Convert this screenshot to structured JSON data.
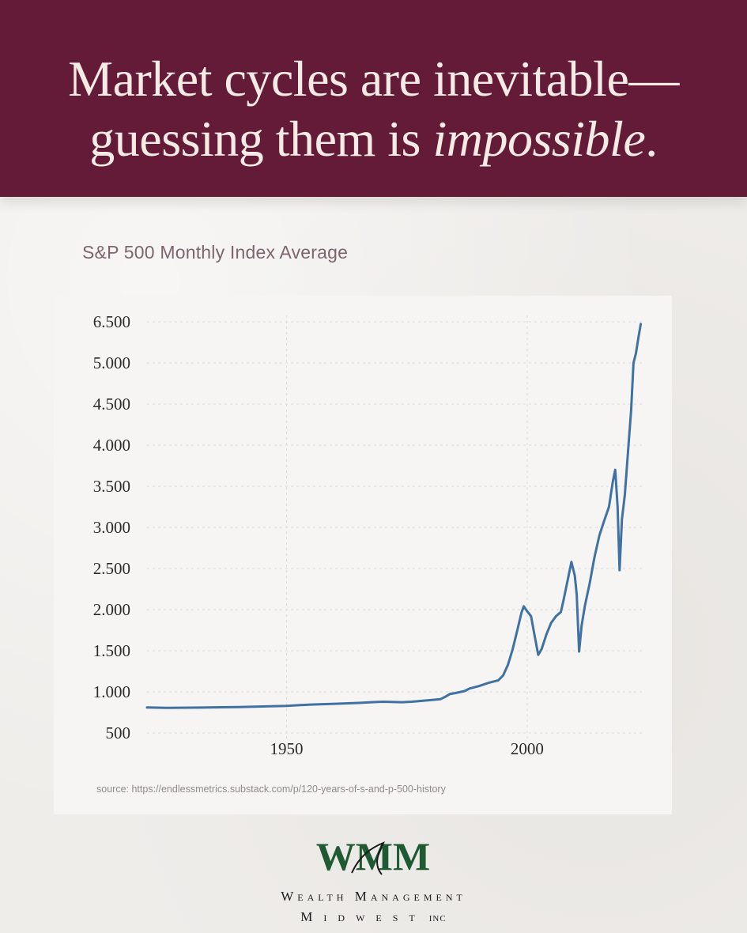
{
  "header": {
    "line1": "Market cycles are inevitable—",
    "line2_prefix": "guessing them is ",
    "line2_emphasis": "impossible",
    "line2_suffix": "."
  },
  "chart_data": {
    "type": "line",
    "title": "S&P 500 Monthly Index Average",
    "xlabel": "",
    "ylabel": "",
    "x_ticks": [
      "1950",
      "2000"
    ],
    "y_ticks": [
      "500",
      "1.000",
      "1.500",
      "2.000",
      "2.500",
      "3.000",
      "3.500",
      "4.000",
      "4.500",
      "5.000",
      "6.500"
    ],
    "xlim": [
      1921,
      2024
    ],
    "grid": true,
    "line_color": "#3f72a3",
    "series": [
      {
        "values": [
          [
            1921,
            810
          ],
          [
            1925,
            805
          ],
          [
            1930,
            808
          ],
          [
            1935,
            812
          ],
          [
            1940,
            815
          ],
          [
            1945,
            822
          ],
          [
            1950,
            830
          ],
          [
            1955,
            845
          ],
          [
            1960,
            855
          ],
          [
            1965,
            865
          ],
          [
            1968,
            875
          ],
          [
            1970,
            880
          ],
          [
            1974,
            874
          ],
          [
            1976,
            880
          ],
          [
            1980,
            900
          ],
          [
            1982,
            912
          ],
          [
            1983,
            940
          ],
          [
            1984,
            975
          ],
          [
            1985,
            985
          ],
          [
            1987,
            1010
          ],
          [
            1988,
            1040
          ],
          [
            1990,
            1070
          ],
          [
            1992,
            1110
          ],
          [
            1994,
            1140
          ],
          [
            1995,
            1200
          ],
          [
            1996,
            1330
          ],
          [
            1997,
            1520
          ],
          [
            1998,
            1760
          ],
          [
            1998.8,
            1960
          ],
          [
            1999.3,
            2040
          ],
          [
            2000,
            1980
          ],
          [
            2000.8,
            1920
          ],
          [
            2001.5,
            1700
          ],
          [
            2002.3,
            1450
          ],
          [
            2003,
            1520
          ],
          [
            2004,
            1700
          ],
          [
            2005,
            1840
          ],
          [
            2006,
            1920
          ],
          [
            2007,
            1970
          ],
          [
            2007.5,
            2100
          ],
          [
            2008.5,
            2380
          ],
          [
            2009.2,
            2580
          ],
          [
            2009.9,
            2410
          ],
          [
            2010.3,
            2180
          ],
          [
            2010.8,
            1490
          ],
          [
            2011.3,
            1800
          ],
          [
            2012,
            2050
          ],
          [
            2013,
            2320
          ],
          [
            2014,
            2640
          ],
          [
            2015,
            2900
          ],
          [
            2016,
            3080
          ],
          [
            2017,
            3250
          ],
          [
            2017.8,
            3560
          ],
          [
            2018.3,
            3700
          ],
          [
            2018.8,
            3250
          ],
          [
            2019.2,
            2480
          ],
          [
            2019.7,
            3100
          ],
          [
            2020.3,
            3400
          ],
          [
            2021,
            3950
          ],
          [
            2021.6,
            4420
          ],
          [
            2022.1,
            5000
          ],
          [
            2022.6,
            5350
          ],
          [
            2023.1,
            5900
          ],
          [
            2023.6,
            6420
          ]
        ]
      }
    ]
  },
  "source": "source: https://endlessmetrics.substack.com/p/120-years-of-s-and-p-500-history",
  "brand": {
    "mark": "WMM",
    "line1": "Wealth Management",
    "line2": "Midwest",
    "line2_suffix": "INC",
    "color": "#1f5a33"
  }
}
